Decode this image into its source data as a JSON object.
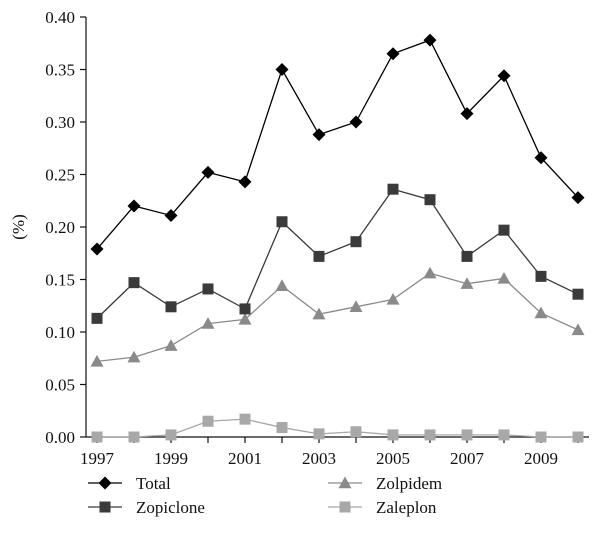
{
  "chart_data": {
    "type": "line",
    "title": "",
    "xlabel": "",
    "ylabel": "(%)",
    "xlim": [
      1997,
      2010
    ],
    "ylim": [
      0,
      0.4
    ],
    "x_tick_labels": [
      "1997",
      "1999",
      "2001",
      "2003",
      "2005",
      "2007",
      "2009"
    ],
    "y_tick_labels": [
      "0.00",
      "0.05",
      "0.10",
      "0.15",
      "0.20",
      "0.25",
      "0.30",
      "0.35",
      "0.40"
    ],
    "grid": false,
    "legend_position": "bottom",
    "x": [
      1997,
      1998,
      1999,
      2000,
      2001,
      2002,
      2003,
      2004,
      2005,
      2006,
      2007,
      2008,
      2009,
      2010
    ],
    "series": [
      {
        "name": "Total",
        "marker": "diamond",
        "color": "#000000",
        "values": [
          0.179,
          0.22,
          0.211,
          0.252,
          0.243,
          0.35,
          0.288,
          0.3,
          0.365,
          0.378,
          0.308,
          0.344,
          0.266,
          0.228
        ]
      },
      {
        "name": "Zopiclone",
        "marker": "square",
        "color": "#3a3a3a",
        "values": [
          0.113,
          0.147,
          0.124,
          0.141,
          0.122,
          0.205,
          0.172,
          0.186,
          0.236,
          0.226,
          0.172,
          0.197,
          0.153,
          0.136
        ]
      },
      {
        "name": "Zolpidem",
        "marker": "triangle",
        "color": "#8a8a8a",
        "values": [
          0.072,
          0.076,
          0.087,
          0.108,
          0.112,
          0.144,
          0.117,
          0.124,
          0.131,
          0.156,
          0.146,
          0.151,
          0.118,
          0.102
        ]
      },
      {
        "name": "Zaleplon",
        "marker": "square",
        "color": "#a8a8a8",
        "values": [
          0.0,
          0.0,
          0.002,
          0.015,
          0.017,
          0.009,
          0.003,
          0.005,
          0.002,
          0.002,
          0.002,
          0.002,
          0.0,
          0.0
        ]
      }
    ]
  }
}
